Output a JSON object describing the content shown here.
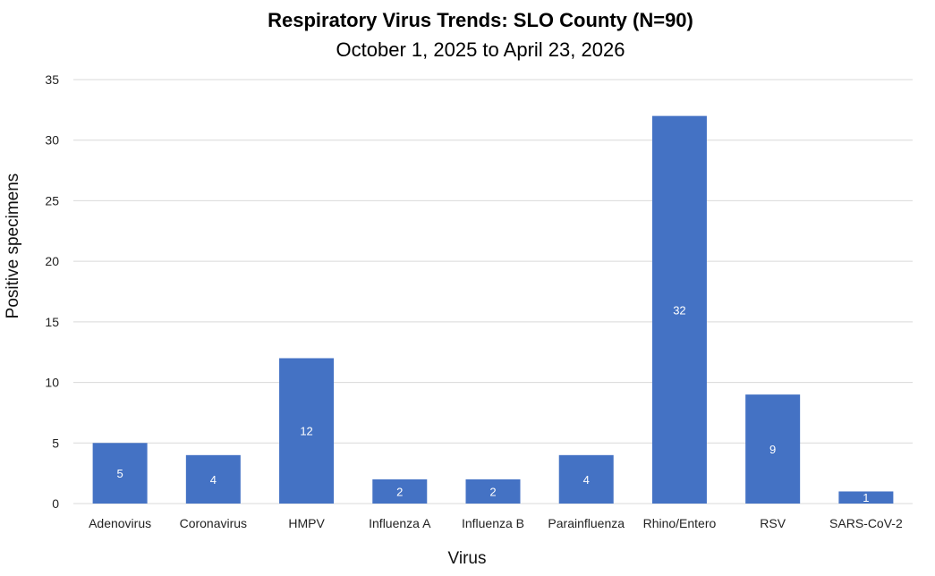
{
  "chart_data": {
    "type": "bar",
    "title": "Respiratory Virus Trends: SLO County (N=90)",
    "subtitle": "October 1, 2025 to April 23, 2026",
    "xlabel": "Virus",
    "ylabel": "Positive specimens",
    "categories": [
      "Adenovirus",
      "Coronavirus",
      "HMPV",
      "Influenza A",
      "Influenza B",
      "Parainfluenza",
      "Rhino/Entero",
      "RSV",
      "SARS-CoV-2"
    ],
    "values": [
      5,
      4,
      12,
      2,
      2,
      4,
      32,
      9,
      1
    ],
    "ylim": [
      0,
      35
    ],
    "yticks": [
      0,
      5,
      10,
      15,
      20,
      25,
      30,
      35
    ],
    "grid": true,
    "legend": "none",
    "bar_color": "#4472C4",
    "data_labels": true
  }
}
